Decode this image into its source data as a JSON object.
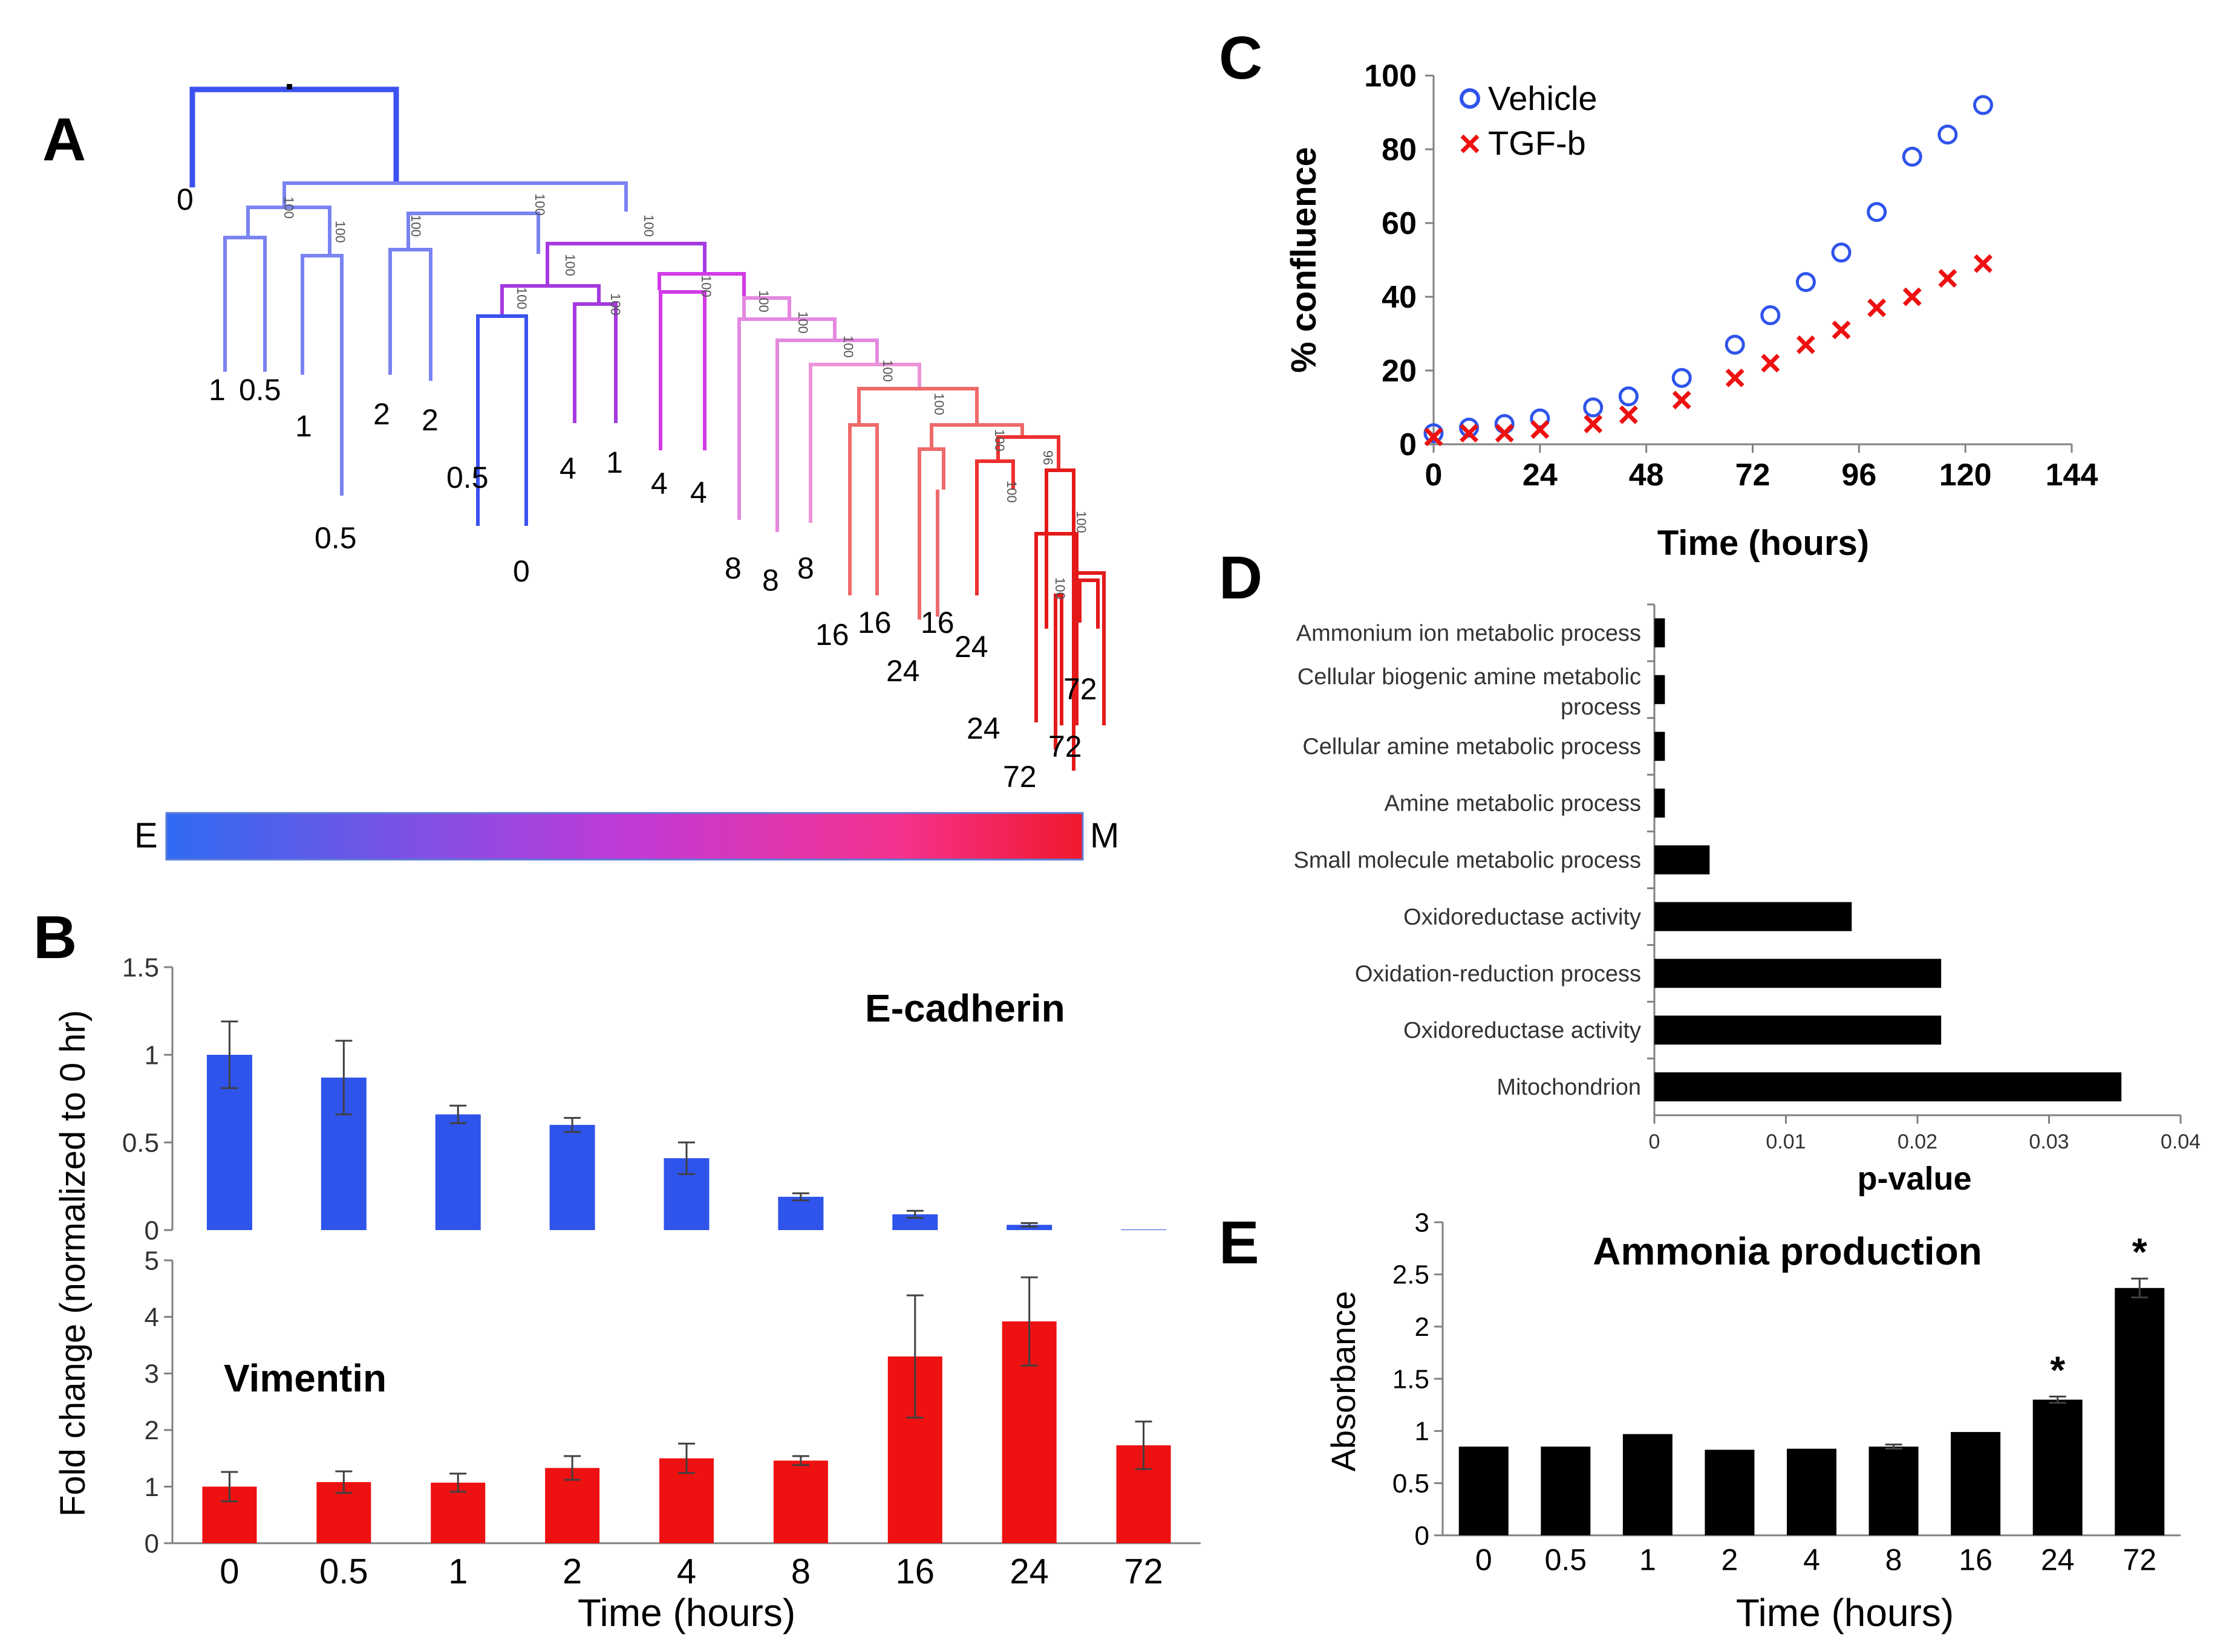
{
  "panel_letters": {
    "a": "A",
    "b": "B",
    "c": "C",
    "d": "D",
    "e": "E"
  },
  "dendrogram": {
    "scale_left": "E",
    "scale_right": "M",
    "bootstrap_label": "100",
    "bootstrap_label_alt": "96",
    "leaf_labels": [
      "0",
      "1",
      "0.5",
      "1",
      "0.5",
      "2",
      "2",
      "0.5",
      "0",
      "4",
      "1",
      "4",
      "4",
      "8",
      "8",
      "8",
      "16",
      "16",
      "16",
      "24",
      "24",
      "24",
      "72",
      "72",
      "72"
    ]
  },
  "colors": {
    "blue": "#2f54eb",
    "red": "#ee1111",
    "black": "#000000",
    "gray": "#808080"
  },
  "chart_data": [
    {
      "panel": "B-top",
      "type": "bar",
      "title": "E-cadherin",
      "ylabel": "Fold change (normalized to 0 hr)",
      "categories": [
        "0",
        "0.5",
        "1",
        "2",
        "4",
        "8",
        "16",
        "24",
        "72"
      ],
      "values": [
        1.0,
        0.87,
        0.66,
        0.6,
        0.41,
        0.19,
        0.09,
        0.03,
        0.0
      ],
      "errors": [
        0.19,
        0.21,
        0.05,
        0.04,
        0.09,
        0.02,
        0.02,
        0.01,
        0.0
      ],
      "ylim": [
        0,
        1.5
      ],
      "yticks": [
        "0",
        "0.5",
        "1",
        "1.5"
      ],
      "color": "#2f54eb"
    },
    {
      "panel": "B-bottom",
      "type": "bar",
      "title": "Vimentin",
      "xlabel": "Time (hours)",
      "categories": [
        "0",
        "0.5",
        "1",
        "2",
        "4",
        "8",
        "16",
        "24",
        "72"
      ],
      "values": [
        1.0,
        1.08,
        1.07,
        1.33,
        1.5,
        1.46,
        3.3,
        3.92,
        1.73
      ],
      "errors": [
        0.26,
        0.19,
        0.16,
        0.21,
        0.26,
        0.08,
        1.08,
        0.78,
        0.42
      ],
      "ylim": [
        0,
        5
      ],
      "yticks": [
        "0",
        "1",
        "2",
        "3",
        "4",
        "5"
      ],
      "color": "#ee1111"
    },
    {
      "panel": "C",
      "type": "scatter",
      "xlabel": "Time (hours)",
      "ylabel": "% confluence",
      "xlim": [
        0,
        144
      ],
      "ylim": [
        0,
        100
      ],
      "xticks": [
        "0",
        "24",
        "48",
        "72",
        "96",
        "120",
        "144"
      ],
      "yticks": [
        "0",
        "20",
        "40",
        "60",
        "80",
        "100"
      ],
      "series": [
        {
          "name": "Vehicle",
          "marker": "circle",
          "color": "#2f54eb",
          "x": [
            0,
            8,
            16,
            24,
            36,
            44,
            56,
            68,
            76,
            84,
            92,
            100,
            108,
            116,
            124
          ],
          "y": [
            3,
            4.5,
            5.5,
            7,
            10,
            13,
            18,
            27,
            35,
            44,
            52,
            63,
            78,
            84,
            92
          ]
        },
        {
          "name": "TGF-b",
          "marker": "x",
          "color": "#ee1111",
          "x": [
            0,
            8,
            16,
            24,
            36,
            44,
            56,
            68,
            76,
            84,
            92,
            100,
            108,
            116,
            124
          ],
          "y": [
            2,
            3,
            3,
            4,
            5.5,
            8,
            12,
            18,
            22,
            27,
            31,
            37,
            40,
            45,
            49
          ]
        }
      ]
    },
    {
      "panel": "D",
      "type": "bar",
      "orientation": "horizontal",
      "xlabel": "p-value",
      "xlim": [
        0,
        0.04
      ],
      "xticks": [
        "0",
        "0.01",
        "0.02",
        "0.03",
        "0.04"
      ],
      "categories": [
        [
          "Ammonium ion metabolic process"
        ],
        [
          "Cellular biogenic amine metabolic",
          "process"
        ],
        [
          "Cellular amine metabolic process"
        ],
        [
          "Amine metabolic process"
        ],
        [
          "Small molecule metabolic process"
        ],
        [
          "Oxidoreductase activity"
        ],
        [
          "Oxidation-reduction process"
        ],
        [
          "Oxidoreductase activity"
        ],
        [
          "Mitochondrion"
        ]
      ],
      "values": [
        0.0008,
        0.0008,
        0.0008,
        0.0008,
        0.0042,
        0.015,
        0.0218,
        0.0218,
        0.0355
      ],
      "color": "#000000"
    },
    {
      "panel": "E",
      "type": "bar",
      "title": "Ammonia production",
      "xlabel": "Time (hours)",
      "ylabel": "Absorbance",
      "categories": [
        "0",
        "0.5",
        "1",
        "2",
        "4",
        "8",
        "16",
        "24",
        "72"
      ],
      "values": [
        0.85,
        0.85,
        0.97,
        0.82,
        0.83,
        0.85,
        0.99,
        1.3,
        2.37
      ],
      "errors": [
        0.0,
        0.0,
        0.0,
        0.0,
        0.0,
        0.02,
        0.0,
        0.03,
        0.09
      ],
      "significance": [
        "",
        "",
        "",
        "",
        "",
        "",
        "",
        "*",
        "*"
      ],
      "ylim": [
        0,
        3
      ],
      "yticks": [
        "0",
        "0.5",
        "1",
        "1.5",
        "2",
        "2.5",
        "3"
      ],
      "color": "#000000"
    }
  ]
}
